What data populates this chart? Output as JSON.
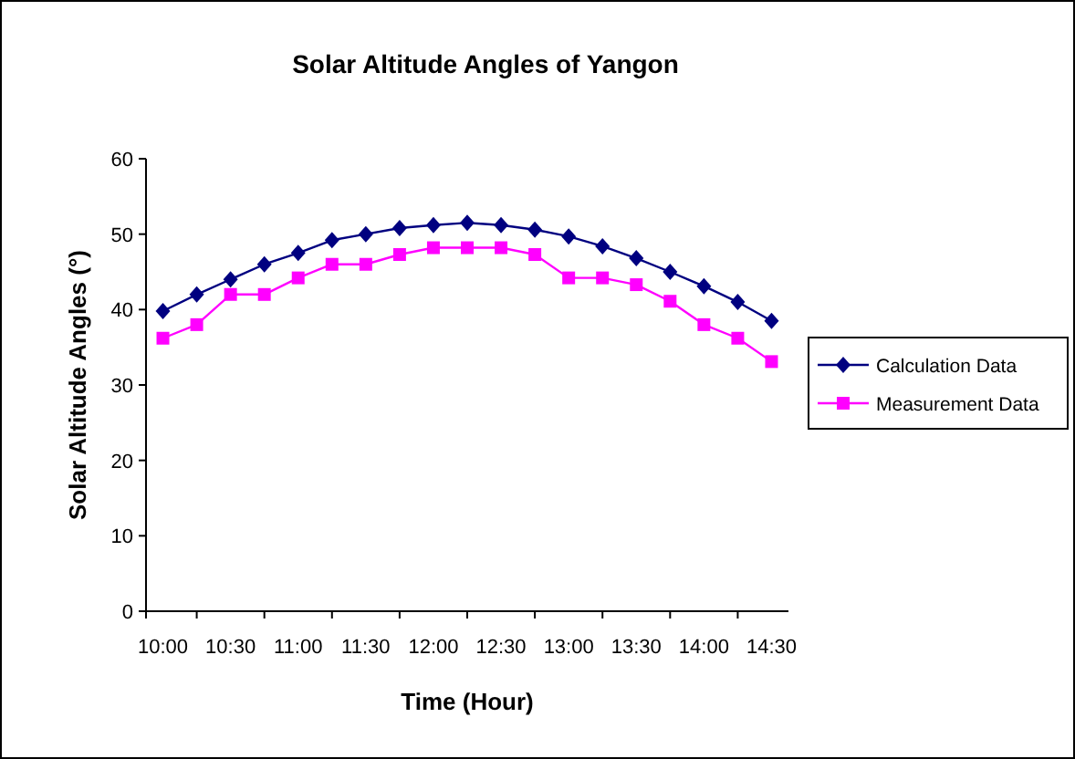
{
  "chart_data": {
    "type": "line",
    "title": "Solar Altitude Angles of Yangon",
    "xlabel": "Time (Hour)",
    "ylabel": "Solar Altitude Angles (°)",
    "categories": [
      "10:00",
      null,
      "10:30",
      null,
      "11:00",
      null,
      "11:30",
      null,
      "12:00",
      null,
      "12:30",
      null,
      "13:00",
      null,
      "13:30",
      null,
      "14:00",
      null,
      "14:30"
    ],
    "series": [
      {
        "name": "Calculation Data",
        "color": "#000080",
        "marker": "diamond",
        "values": [
          39.8,
          42,
          44,
          46,
          47.5,
          49.2,
          50,
          50.8,
          51.2,
          51.5,
          51.2,
          50.6,
          49.7,
          48.4,
          46.8,
          45,
          43.1,
          41,
          38.5
        ]
      },
      {
        "name": "Measurement Data",
        "color": "#ff00ff",
        "marker": "square",
        "values": [
          36.2,
          38,
          42,
          42,
          44.2,
          46,
          46,
          47.3,
          48.2,
          48.2,
          48.2,
          47.3,
          44.2,
          44.2,
          43.3,
          41.1,
          38,
          36.2,
          33.1
        ]
      }
    ],
    "ylim": [
      0,
      60
    ],
    "yticks": [
      0,
      10,
      20,
      30,
      40,
      50,
      60
    ],
    "grid": false,
    "legend": "right"
  }
}
